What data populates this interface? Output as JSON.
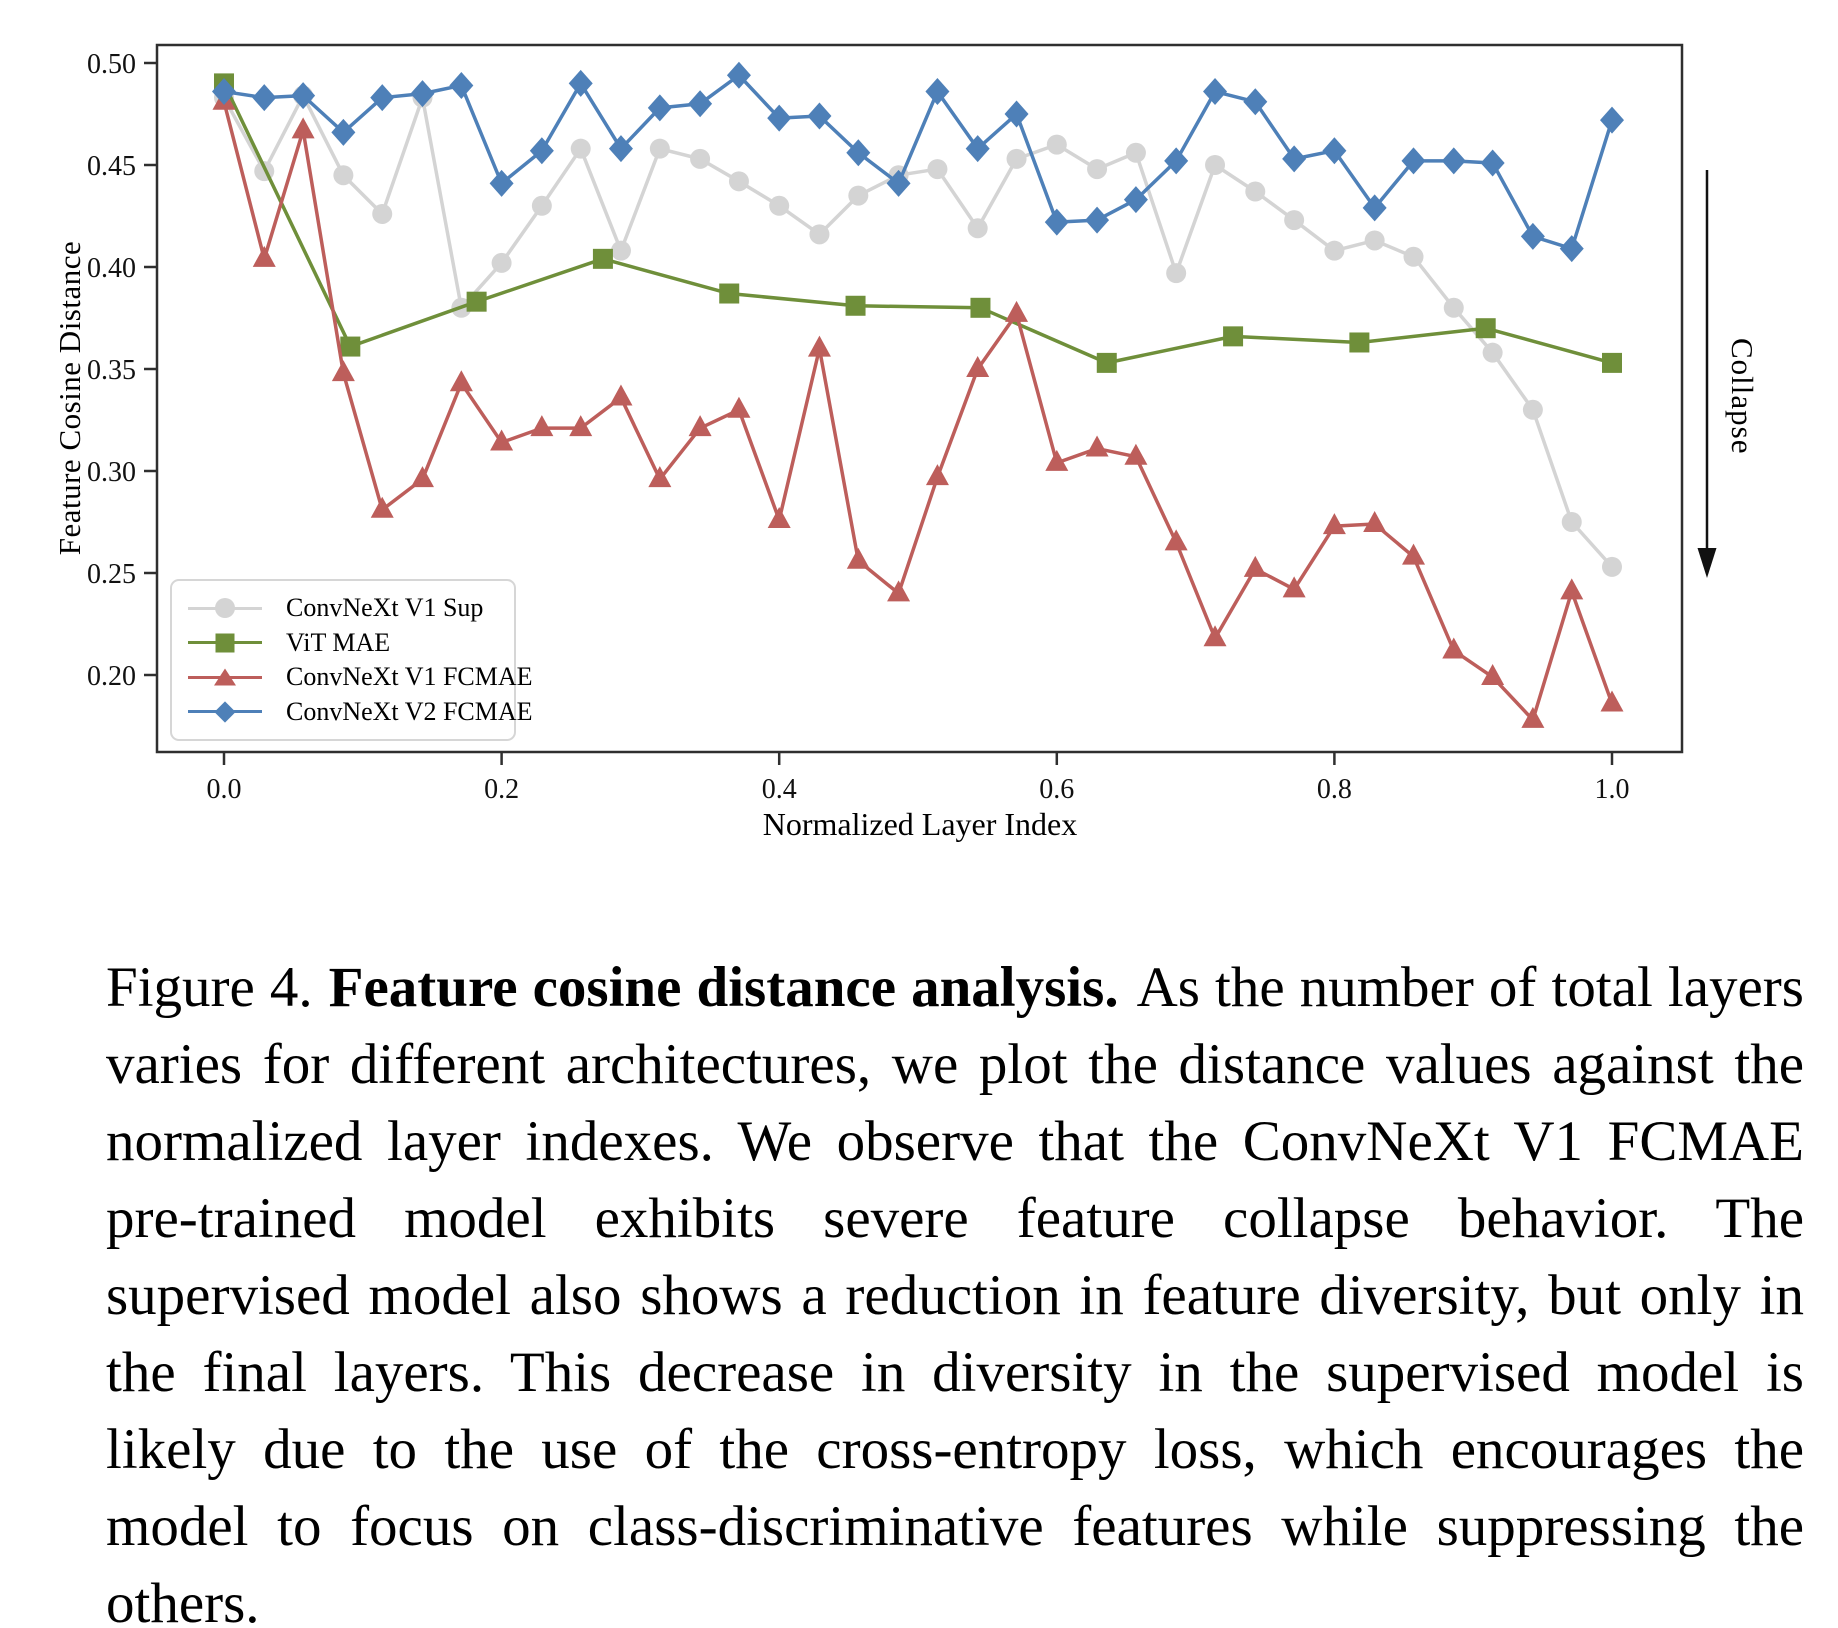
{
  "figure": {
    "ylabel": "Feature Cosine Distance",
    "xlabel": "Normalized Layer Index",
    "y_ticks": [
      "0.50",
      "0.45",
      "0.40",
      "0.35",
      "0.30",
      "0.25",
      "0.20"
    ],
    "x_ticks": [
      "0.0",
      "0.2",
      "0.4",
      "0.6",
      "0.8",
      "1.0"
    ],
    "annotation": "Collapse",
    "legend": [
      {
        "label": "ConvNeXt V1 Sup",
        "marker": "circle",
        "color": "#d4d4d4"
      },
      {
        "label": "ViT MAE",
        "marker": "square",
        "color": "#6f8f3a"
      },
      {
        "label": "ConvNeXt V1 FCMAE",
        "marker": "triangle",
        "color": "#bd5e5b"
      },
      {
        "label": "ConvNeXt V2 FCMAE",
        "marker": "diamond",
        "color": "#4e80b8"
      }
    ]
  },
  "chart_data": {
    "type": "line",
    "title": "",
    "xlabel": "Normalized Layer Index",
    "ylabel": "Feature Cosine Distance",
    "xlim": [
      -0.048,
      1.05
    ],
    "ylim": [
      0.162,
      0.509
    ],
    "xticks": [
      0.0,
      0.2,
      0.4,
      0.6,
      0.8,
      1.0
    ],
    "yticks": [
      0.5,
      0.45,
      0.4,
      0.35,
      0.3,
      0.25,
      0.2
    ],
    "grid": false,
    "legend_position": "lower left",
    "annotation": {
      "text": "Collapse",
      "arrow": "down",
      "position": "right-margin"
    },
    "series": [
      {
        "name": "ConvNeXt V1 Sup",
        "color": "#d4d4d4",
        "marker": "circle",
        "x": [
          0.0,
          0.029,
          0.057,
          0.086,
          0.114,
          0.143,
          0.171,
          0.2,
          0.229,
          0.257,
          0.286,
          0.314,
          0.343,
          0.371,
          0.4,
          0.429,
          0.457,
          0.486,
          0.514,
          0.543,
          0.571,
          0.6,
          0.629,
          0.657,
          0.686,
          0.714,
          0.743,
          0.771,
          0.8,
          0.829,
          0.857,
          0.886,
          0.914,
          0.943,
          0.971,
          1.0
        ],
        "y": [
          0.483,
          0.447,
          0.484,
          0.445,
          0.426,
          0.483,
          0.38,
          0.402,
          0.43,
          0.458,
          0.408,
          0.458,
          0.453,
          0.442,
          0.43,
          0.416,
          0.435,
          0.445,
          0.448,
          0.419,
          0.453,
          0.46,
          0.448,
          0.456,
          0.397,
          0.45,
          0.437,
          0.423,
          0.408,
          0.413,
          0.405,
          0.38,
          0.358,
          0.33,
          0.275,
          0.253
        ]
      },
      {
        "name": "ViT MAE",
        "color": "#6f8f3a",
        "marker": "square",
        "x": [
          0.0,
          0.091,
          0.182,
          0.273,
          0.364,
          0.455,
          0.545,
          0.636,
          0.727,
          0.818,
          0.909,
          1.0
        ],
        "y": [
          0.49,
          0.361,
          0.383,
          0.404,
          0.387,
          0.381,
          0.38,
          0.353,
          0.366,
          0.363,
          0.37,
          0.353
        ]
      },
      {
        "name": "ConvNeXt V1 FCMAE",
        "color": "#bd5e5b",
        "marker": "triangle",
        "x": [
          0.0,
          0.029,
          0.057,
          0.086,
          0.114,
          0.143,
          0.171,
          0.2,
          0.229,
          0.257,
          0.286,
          0.314,
          0.343,
          0.371,
          0.4,
          0.429,
          0.457,
          0.486,
          0.514,
          0.543,
          0.571,
          0.6,
          0.629,
          0.657,
          0.686,
          0.714,
          0.743,
          0.771,
          0.8,
          0.829,
          0.857,
          0.886,
          0.914,
          0.943,
          0.971,
          1.0
        ],
        "y": [
          0.481,
          0.404,
          0.467,
          0.348,
          0.281,
          0.296,
          0.343,
          0.314,
          0.321,
          0.321,
          0.336,
          0.296,
          0.321,
          0.33,
          0.276,
          0.36,
          0.256,
          0.24,
          0.297,
          0.35,
          0.377,
          0.304,
          0.311,
          0.307,
          0.265,
          0.218,
          0.252,
          0.242,
          0.273,
          0.274,
          0.258,
          0.212,
          0.199,
          0.178,
          0.241,
          0.186
        ]
      },
      {
        "name": "ConvNeXt V2 FCMAE",
        "color": "#4e80b8",
        "marker": "diamond",
        "x": [
          0.0,
          0.029,
          0.057,
          0.086,
          0.114,
          0.143,
          0.171,
          0.2,
          0.229,
          0.257,
          0.286,
          0.314,
          0.343,
          0.371,
          0.4,
          0.429,
          0.457,
          0.486,
          0.514,
          0.543,
          0.571,
          0.6,
          0.629,
          0.657,
          0.686,
          0.714,
          0.743,
          0.771,
          0.8,
          0.829,
          0.857,
          0.886,
          0.914,
          0.943,
          0.971,
          1.0
        ],
        "y": [
          0.486,
          0.483,
          0.484,
          0.466,
          0.483,
          0.485,
          0.489,
          0.441,
          0.457,
          0.49,
          0.458,
          0.478,
          0.48,
          0.494,
          0.473,
          0.474,
          0.456,
          0.441,
          0.486,
          0.458,
          0.475,
          0.422,
          0.423,
          0.433,
          0.452,
          0.486,
          0.481,
          0.453,
          0.457,
          0.429,
          0.452,
          0.452,
          0.451,
          0.415,
          0.409,
          0.472
        ]
      }
    ]
  },
  "caption": {
    "label": "Figure 4.",
    "title": "Feature cosine distance analysis.",
    "body": "As the number of total layers varies for different architectures, we plot the distance values against the normalized layer indexes. We observe that the ConvNeXt V1 FCMAE pre-trained model exhibits severe feature collapse behavior. The supervised model also shows a reduction in feature diversity, but only in the final layers. This decrease in diversity in the supervised model is likely due to the use of the cross-entropy loss, which encourages the model to focus on class-discriminative features while suppressing the others."
  }
}
